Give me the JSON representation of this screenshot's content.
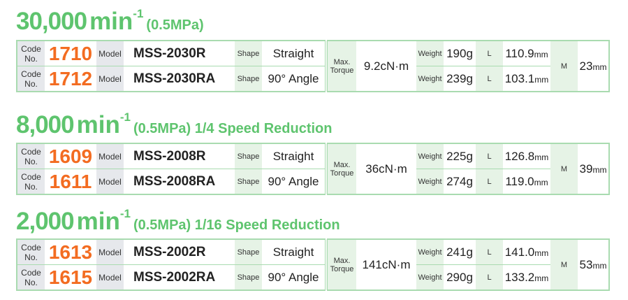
{
  "groups": [
    {
      "speed": "30,000",
      "unit": "min",
      "exp": "-1",
      "note": "(0.5MPa)",
      "torque": "9.2cN·m",
      "m": "23",
      "rows": [
        {
          "code": "1710",
          "model": "MSS-2030R",
          "shape": "Straight",
          "weight": "190g",
          "l": "110.9"
        },
        {
          "code": "1712",
          "model": "MSS-2030RA",
          "shape": "90° Angle",
          "weight": "239g",
          "l": "103.1"
        }
      ]
    },
    {
      "speed": "8,000",
      "unit": "min",
      "exp": "-1",
      "note": "(0.5MPa) 1/4 Speed Reduction",
      "torque": "36cN·m",
      "m": "39",
      "rows": [
        {
          "code": "1609",
          "model": "MSS-2008R",
          "shape": "Straight",
          "weight": "225g",
          "l": "126.8"
        },
        {
          "code": "1611",
          "model": "MSS-2008RA",
          "shape": "90° Angle",
          "weight": "274g",
          "l": "119.0"
        }
      ]
    },
    {
      "speed": "2,000",
      "unit": "min",
      "exp": "-1",
      "note": "(0.5MPa) 1/16 Speed Reduction",
      "torque": "141cN·m",
      "m": "53",
      "rows": [
        {
          "code": "1613",
          "model": "MSS-2002R",
          "shape": "Straight",
          "weight": "241g",
          "l": "141.0"
        },
        {
          "code": "1615",
          "model": "MSS-2002RA",
          "shape": "90° Angle",
          "weight": "290g",
          "l": "133.2"
        }
      ]
    }
  ],
  "labels": {
    "code1": "Code",
    "code2": "No.",
    "model": "Model",
    "shape": "Shape",
    "torque1": "Max.",
    "torque2": "Torque",
    "weight": "Weight",
    "l": "L",
    "m": "M",
    "mm": "mm"
  },
  "colors": {
    "heading": "#5ec46e",
    "code": "#f36c21",
    "border": "#a9dbb0"
  }
}
